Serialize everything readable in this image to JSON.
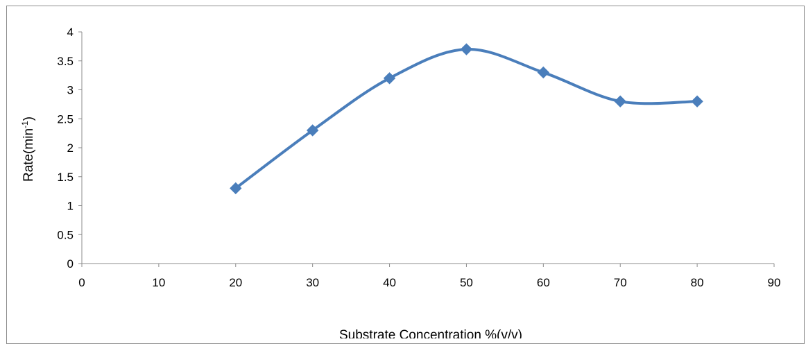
{
  "chart_data": {
    "type": "line",
    "title": "",
    "xlabel": "Substrate Concentration %(v/v)",
    "ylabel": {
      "base": "Rate(min",
      "sup": "-1",
      "close": ")"
    },
    "xlim": [
      0,
      90
    ],
    "ylim": [
      0,
      4
    ],
    "x_ticks": [
      "0",
      "10",
      "20",
      "30",
      "40",
      "50",
      "60",
      "70",
      "80",
      "90"
    ],
    "y_ticks": [
      "0",
      "0.5",
      "1",
      "1.5",
      "2",
      "2.5",
      "3",
      "3.5",
      "4"
    ],
    "grid": false,
    "legend": "none",
    "series": [
      {
        "color": "#4a7ebb",
        "marker": "diamond",
        "smooth": true,
        "x": [
          20,
          30,
          40,
          50,
          60,
          70,
          80
        ],
        "y": [
          1.3,
          2.3,
          3.2,
          3.7,
          3.3,
          2.8,
          2.8
        ]
      }
    ]
  }
}
